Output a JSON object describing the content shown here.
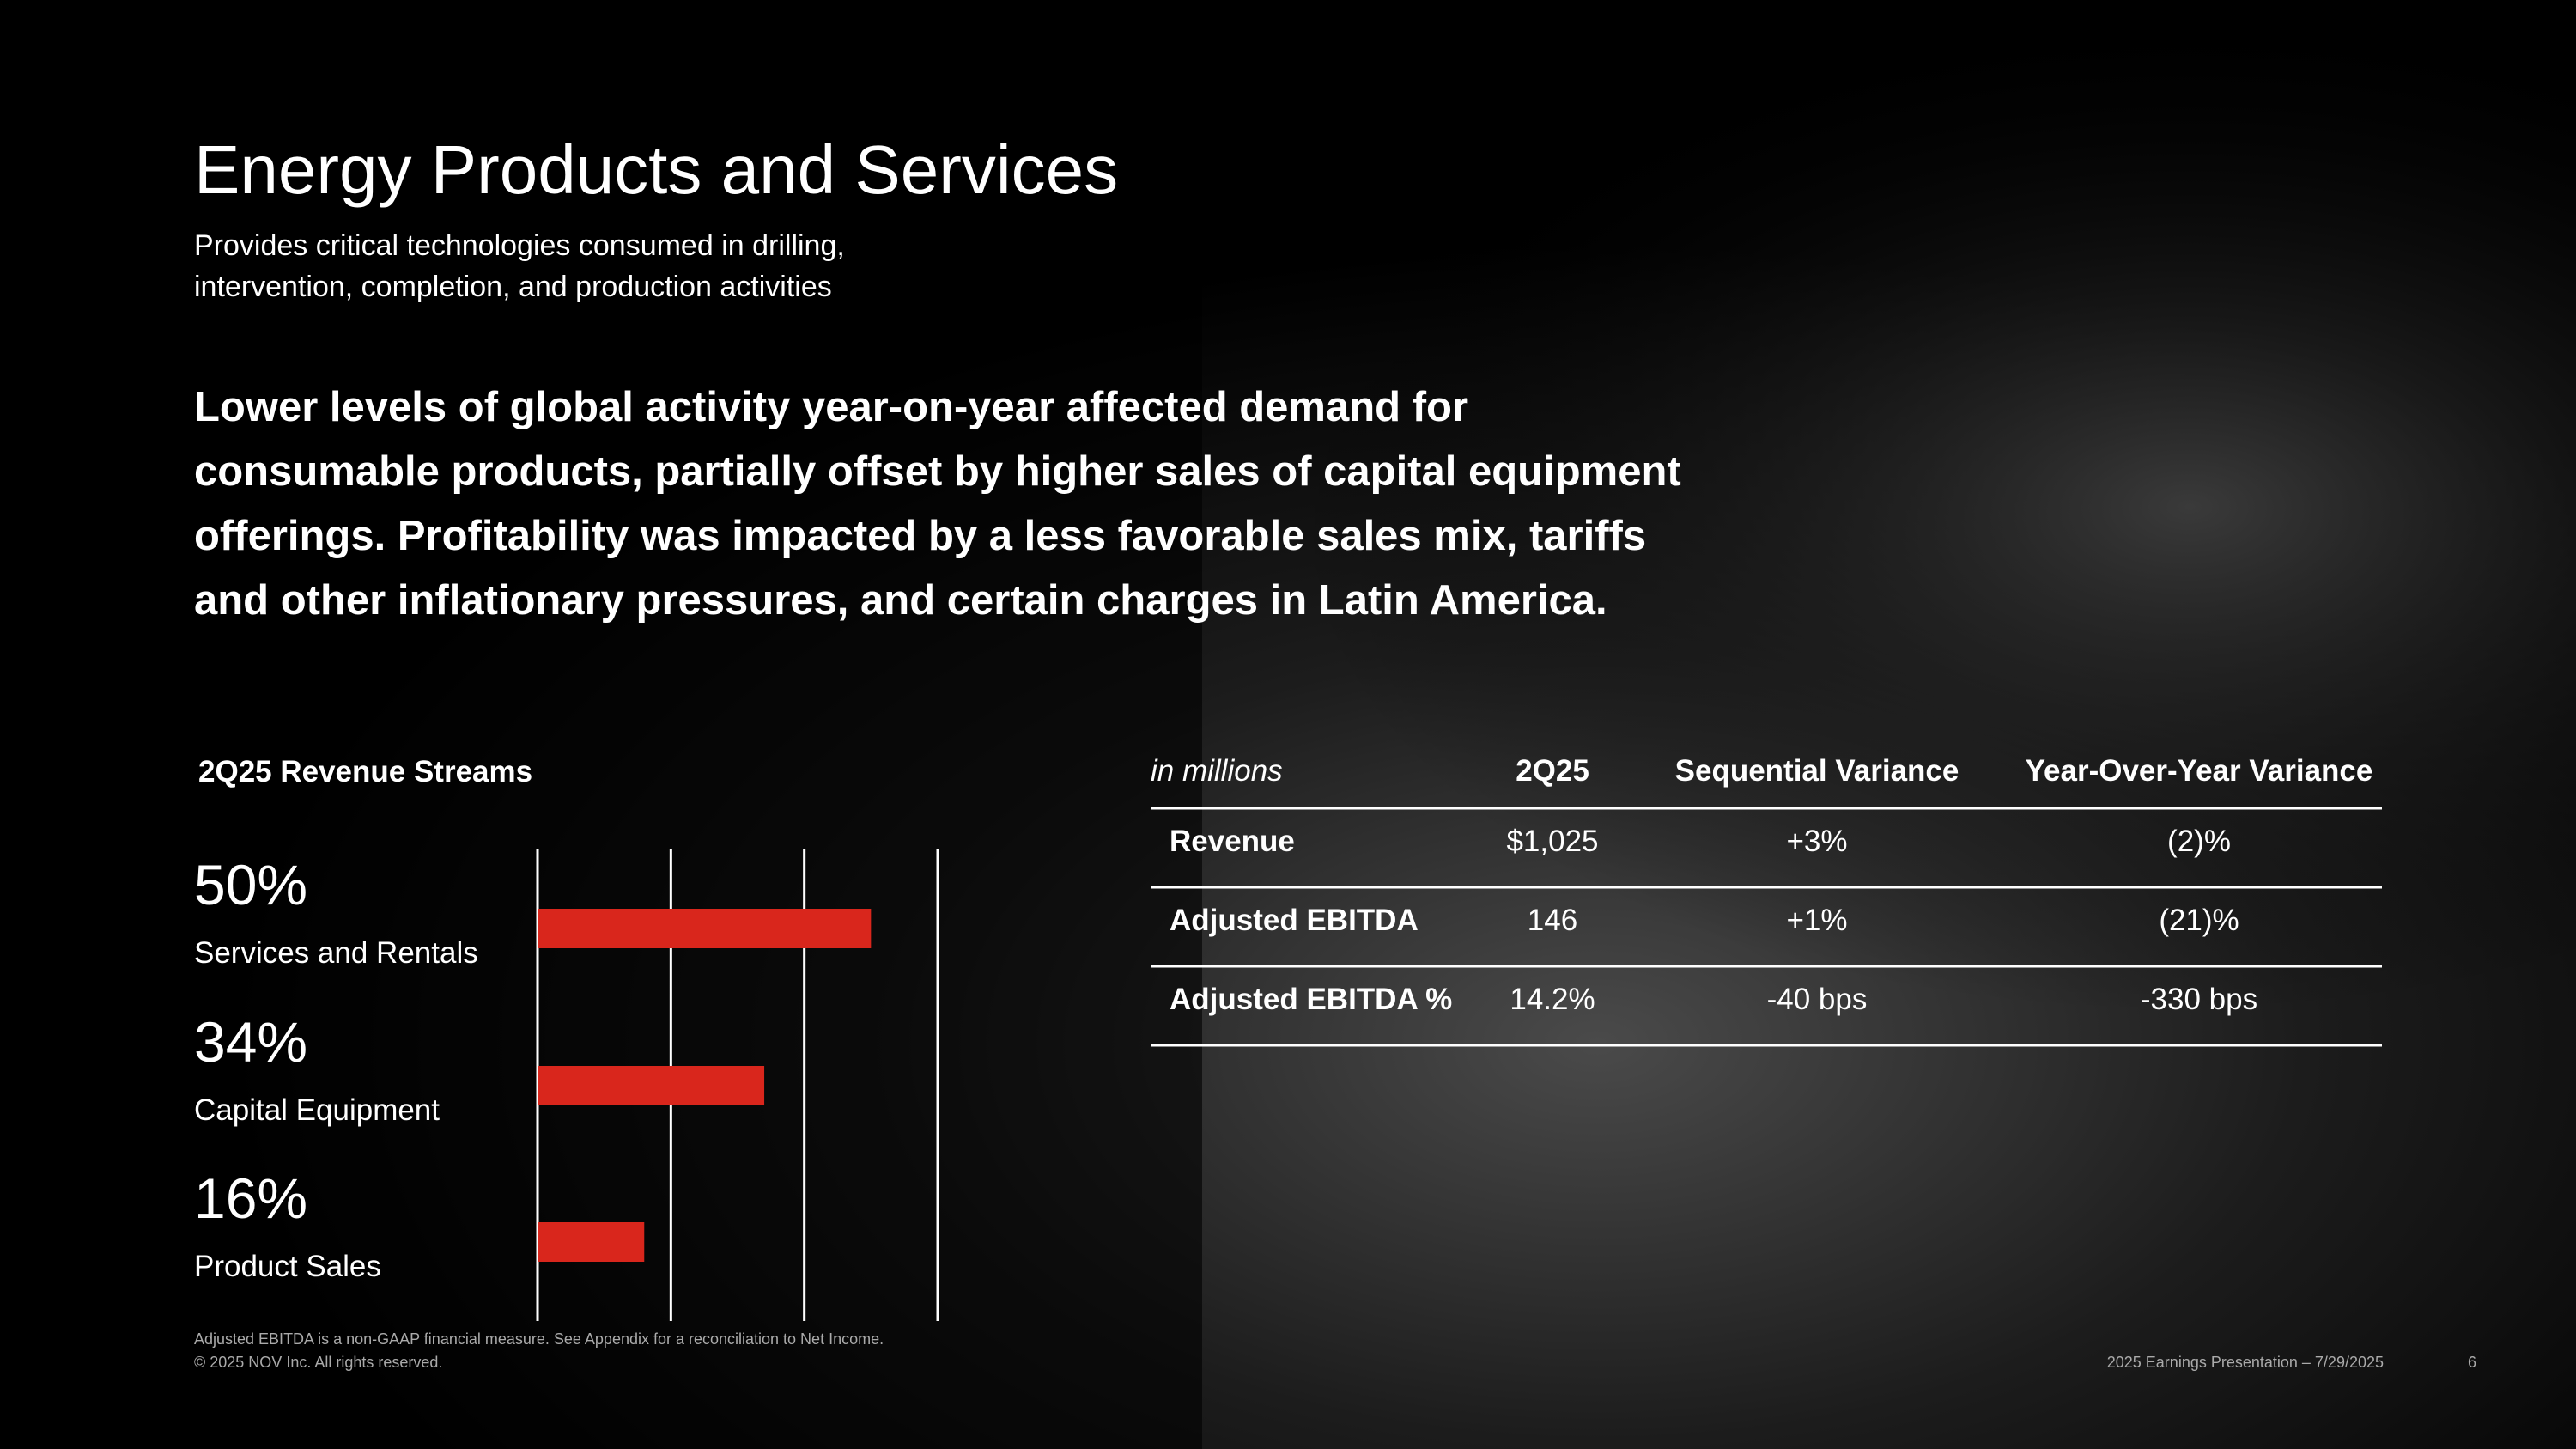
{
  "header": {
    "title": "Energy Products and Services",
    "subtitle_lines": [
      "Provides critical technologies consumed in drilling,",
      "intervention, completion, and production activities"
    ]
  },
  "summary_lines": [
    "Lower levels of global activity year-on-year affected demand for",
    "consumable products, partially offset by higher sales of capital equipment",
    "offerings. Profitability was impacted by a less favorable sales mix, tariffs",
    "and other inflationary pressures, and certain charges in Latin America."
  ],
  "chart_data": {
    "type": "bar",
    "orientation": "horizontal",
    "title": "2Q25 Revenue Streams",
    "categories": [
      "Services and Rentals",
      "Capital Equipment",
      "Product Sales"
    ],
    "values": [
      50,
      34,
      16
    ],
    "value_labels": [
      "50%",
      "34%",
      "16%"
    ],
    "color": "#d9261c",
    "xlim": [
      0,
      60
    ],
    "xticks": [
      0,
      20,
      40,
      60
    ],
    "grid": true
  },
  "table": {
    "columns": [
      "in millions",
      "2Q25",
      "Sequential Variance",
      "Year-Over-Year Variance"
    ],
    "rows": [
      [
        "Revenue",
        "$1,025",
        "+3%",
        "(2)%"
      ],
      [
        "Adjusted EBITDA",
        "146",
        "+1%",
        "(21)%"
      ],
      [
        "Adjusted EBITDA %",
        "14.2%",
        "-40 bps",
        "-330 bps"
      ]
    ]
  },
  "footer": {
    "notes": [
      "Adjusted EBITDA is a non-GAAP financial measure. See Appendix for a reconciliation to Net Income.",
      "© 2025 NOV Inc. All rights reserved."
    ],
    "presentation": "2025 Earnings Presentation – 7/29/2025",
    "page": "6"
  }
}
